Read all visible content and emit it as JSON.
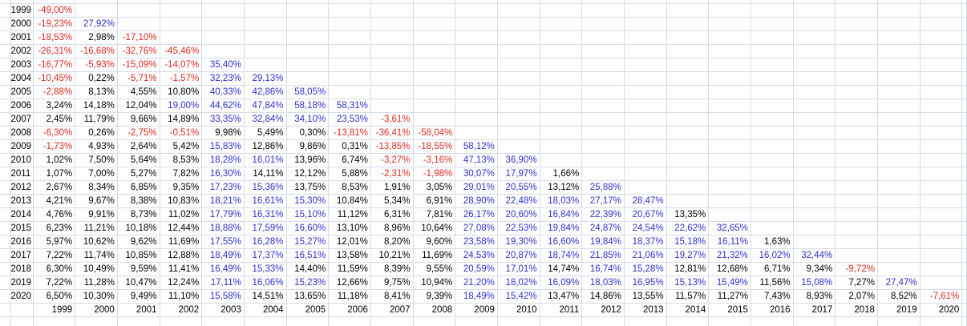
{
  "matrix": {
    "footer_years": [
      "1999",
      "2000",
      "2001",
      "2002",
      "2003",
      "2004",
      "2005",
      "2006",
      "2007",
      "2008",
      "2009",
      "2010",
      "2011",
      "2012",
      "2013",
      "2014",
      "2015",
      "2016",
      "2017",
      "2018",
      "2019",
      "2020"
    ],
    "rows": [
      {
        "year": "1999",
        "values": [
          "-49,00%"
        ]
      },
      {
        "year": "2000",
        "values": [
          "-19,23%",
          "27,92%"
        ]
      },
      {
        "year": "2001",
        "values": [
          "-18,53%",
          "2,98%",
          "-17,10%"
        ]
      },
      {
        "year": "2002",
        "values": [
          "-26,31%",
          "-16,68%",
          "-32,76%",
          "-45,46%"
        ]
      },
      {
        "year": "2003",
        "values": [
          "-16,77%",
          "-5,93%",
          "-15,09%",
          "-14,07%",
          "35,40%"
        ]
      },
      {
        "year": "2004",
        "values": [
          "-10,45%",
          "0,22%",
          "-5,71%",
          "-1,57%",
          "32,23%",
          "29,13%"
        ]
      },
      {
        "year": "2005",
        "values": [
          "-2,88%",
          "8,13%",
          "4,55%",
          "10,80%",
          "40,33%",
          "42,86%",
          "58,05%"
        ]
      },
      {
        "year": "2006",
        "values": [
          "3,24%",
          "14,18%",
          "12,04%",
          "19,00%",
          "44,62%",
          "47,84%",
          "58,18%",
          "58,31%"
        ]
      },
      {
        "year": "2007",
        "values": [
          "2,45%",
          "11,79%",
          "9,66%",
          "14,89%",
          "33,35%",
          "32,84%",
          "34,10%",
          "23,53%",
          "-3,61%"
        ]
      },
      {
        "year": "2008",
        "values": [
          "-6,30%",
          "0,26%",
          "-2,75%",
          "-0,51%",
          "9,98%",
          "5,49%",
          "0,30%",
          "-13,81%",
          "-36,41%",
          "-58,04%"
        ]
      },
      {
        "year": "2009",
        "values": [
          "-1,73%",
          "4,93%",
          "2,64%",
          "5,42%",
          "15,83%",
          "12,86%",
          "9,86%",
          "0,31%",
          "-13,85%",
          "-18,55%",
          "58,12%"
        ]
      },
      {
        "year": "2010",
        "values": [
          "1,02%",
          "7,50%",
          "5,64%",
          "8,53%",
          "18,28%",
          "16,01%",
          "13,96%",
          "6,74%",
          "-3,27%",
          "-3,16%",
          "47,13%",
          "36,90%"
        ]
      },
      {
        "year": "2011",
        "values": [
          "1,07%",
          "7,00%",
          "5,27%",
          "7,82%",
          "16,30%",
          "14,11%",
          "12,12%",
          "5,88%",
          "-2,31%",
          "-1,98%",
          "30,07%",
          "17,97%",
          "1,66%"
        ]
      },
      {
        "year": "2012",
        "values": [
          "2,67%",
          "8,34%",
          "6,85%",
          "9,35%",
          "17,23%",
          "15,36%",
          "13,75%",
          "8,53%",
          "1,91%",
          "3,05%",
          "29,01%",
          "20,55%",
          "13,12%",
          "25,88%"
        ]
      },
      {
        "year": "2013",
        "values": [
          "4,21%",
          "9,67%",
          "8,38%",
          "10,83%",
          "18,21%",
          "16,61%",
          "15,30%",
          "10,84%",
          "5,34%",
          "6,91%",
          "28,90%",
          "22,48%",
          "18,03%",
          "27,17%",
          "28,47%"
        ]
      },
      {
        "year": "2014",
        "values": [
          "4,76%",
          "9,91%",
          "8,73%",
          "11,02%",
          "17,79%",
          "16,31%",
          "15,10%",
          "11,12%",
          "6,31%",
          "7,81%",
          "26,17%",
          "20,60%",
          "16,84%",
          "22,39%",
          "20,67%",
          "13,35%"
        ]
      },
      {
        "year": "2015",
        "values": [
          "6,23%",
          "11,21%",
          "10,18%",
          "12,44%",
          "18,88%",
          "17,59%",
          "16,60%",
          "13,10%",
          "8,96%",
          "10,64%",
          "27,08%",
          "22,53%",
          "19,84%",
          "24,87%",
          "24,54%",
          "22,62%",
          "32,65%"
        ]
      },
      {
        "year": "2016",
        "values": [
          "5,97%",
          "10,62%",
          "9,62%",
          "11,69%",
          "17,55%",
          "16,28%",
          "15,27%",
          "12,01%",
          "8,20%",
          "9,60%",
          "23,58%",
          "19,30%",
          "16,60%",
          "19,84%",
          "18,37%",
          "15,18%",
          "16,11%",
          "1,63%"
        ]
      },
      {
        "year": "2017",
        "values": [
          "7,22%",
          "11,74%",
          "10,85%",
          "12,88%",
          "18,49%",
          "17,37%",
          "16,51%",
          "13,58%",
          "10,21%",
          "11,69%",
          "24,53%",
          "20,87%",
          "18,74%",
          "21,85%",
          "21,06%",
          "19,27%",
          "21,32%",
          "16,02%",
          "32,44%"
        ]
      },
      {
        "year": "2018",
        "values": [
          "6,30%",
          "10,49%",
          "9,59%",
          "11,41%",
          "16,49%",
          "15,33%",
          "14,40%",
          "11,59%",
          "8,39%",
          "9,55%",
          "20,59%",
          "17,01%",
          "14,74%",
          "16,74%",
          "15,28%",
          "12,81%",
          "12,68%",
          "6,71%",
          "9,34%",
          "-9,72%"
        ]
      },
      {
        "year": "2019",
        "values": [
          "7,22%",
          "11,28%",
          "10,47%",
          "12,24%",
          "17,11%",
          "16,06%",
          "15,23%",
          "12,66%",
          "9,75%",
          "10,94%",
          "21,20%",
          "18,02%",
          "16,09%",
          "18,03%",
          "16,95%",
          "15,13%",
          "15,49%",
          "11,56%",
          "15,08%",
          "7,27%",
          "27,47%"
        ]
      },
      {
        "year": "2020",
        "values": [
          "6,50%",
          "10,30%",
          "9,49%",
          "11,10%",
          "15,58%",
          "14,51%",
          "13,65%",
          "11,18%",
          "8,41%",
          "9,39%",
          "18,49%",
          "15,42%",
          "13,47%",
          "14,86%",
          "13,55%",
          "11,57%",
          "11,27%",
          "7,43%",
          "8,93%",
          "2,07%",
          "8,52%",
          "-7,61%"
        ]
      }
    ],
    "style_rules": {
      "negative_color": "#dc2a1f",
      "high_color": "#3030d0",
      "normal_color": "#000000",
      "gridline_color": "#d6dbe9",
      "high_threshold_pct": 15
    }
  }
}
